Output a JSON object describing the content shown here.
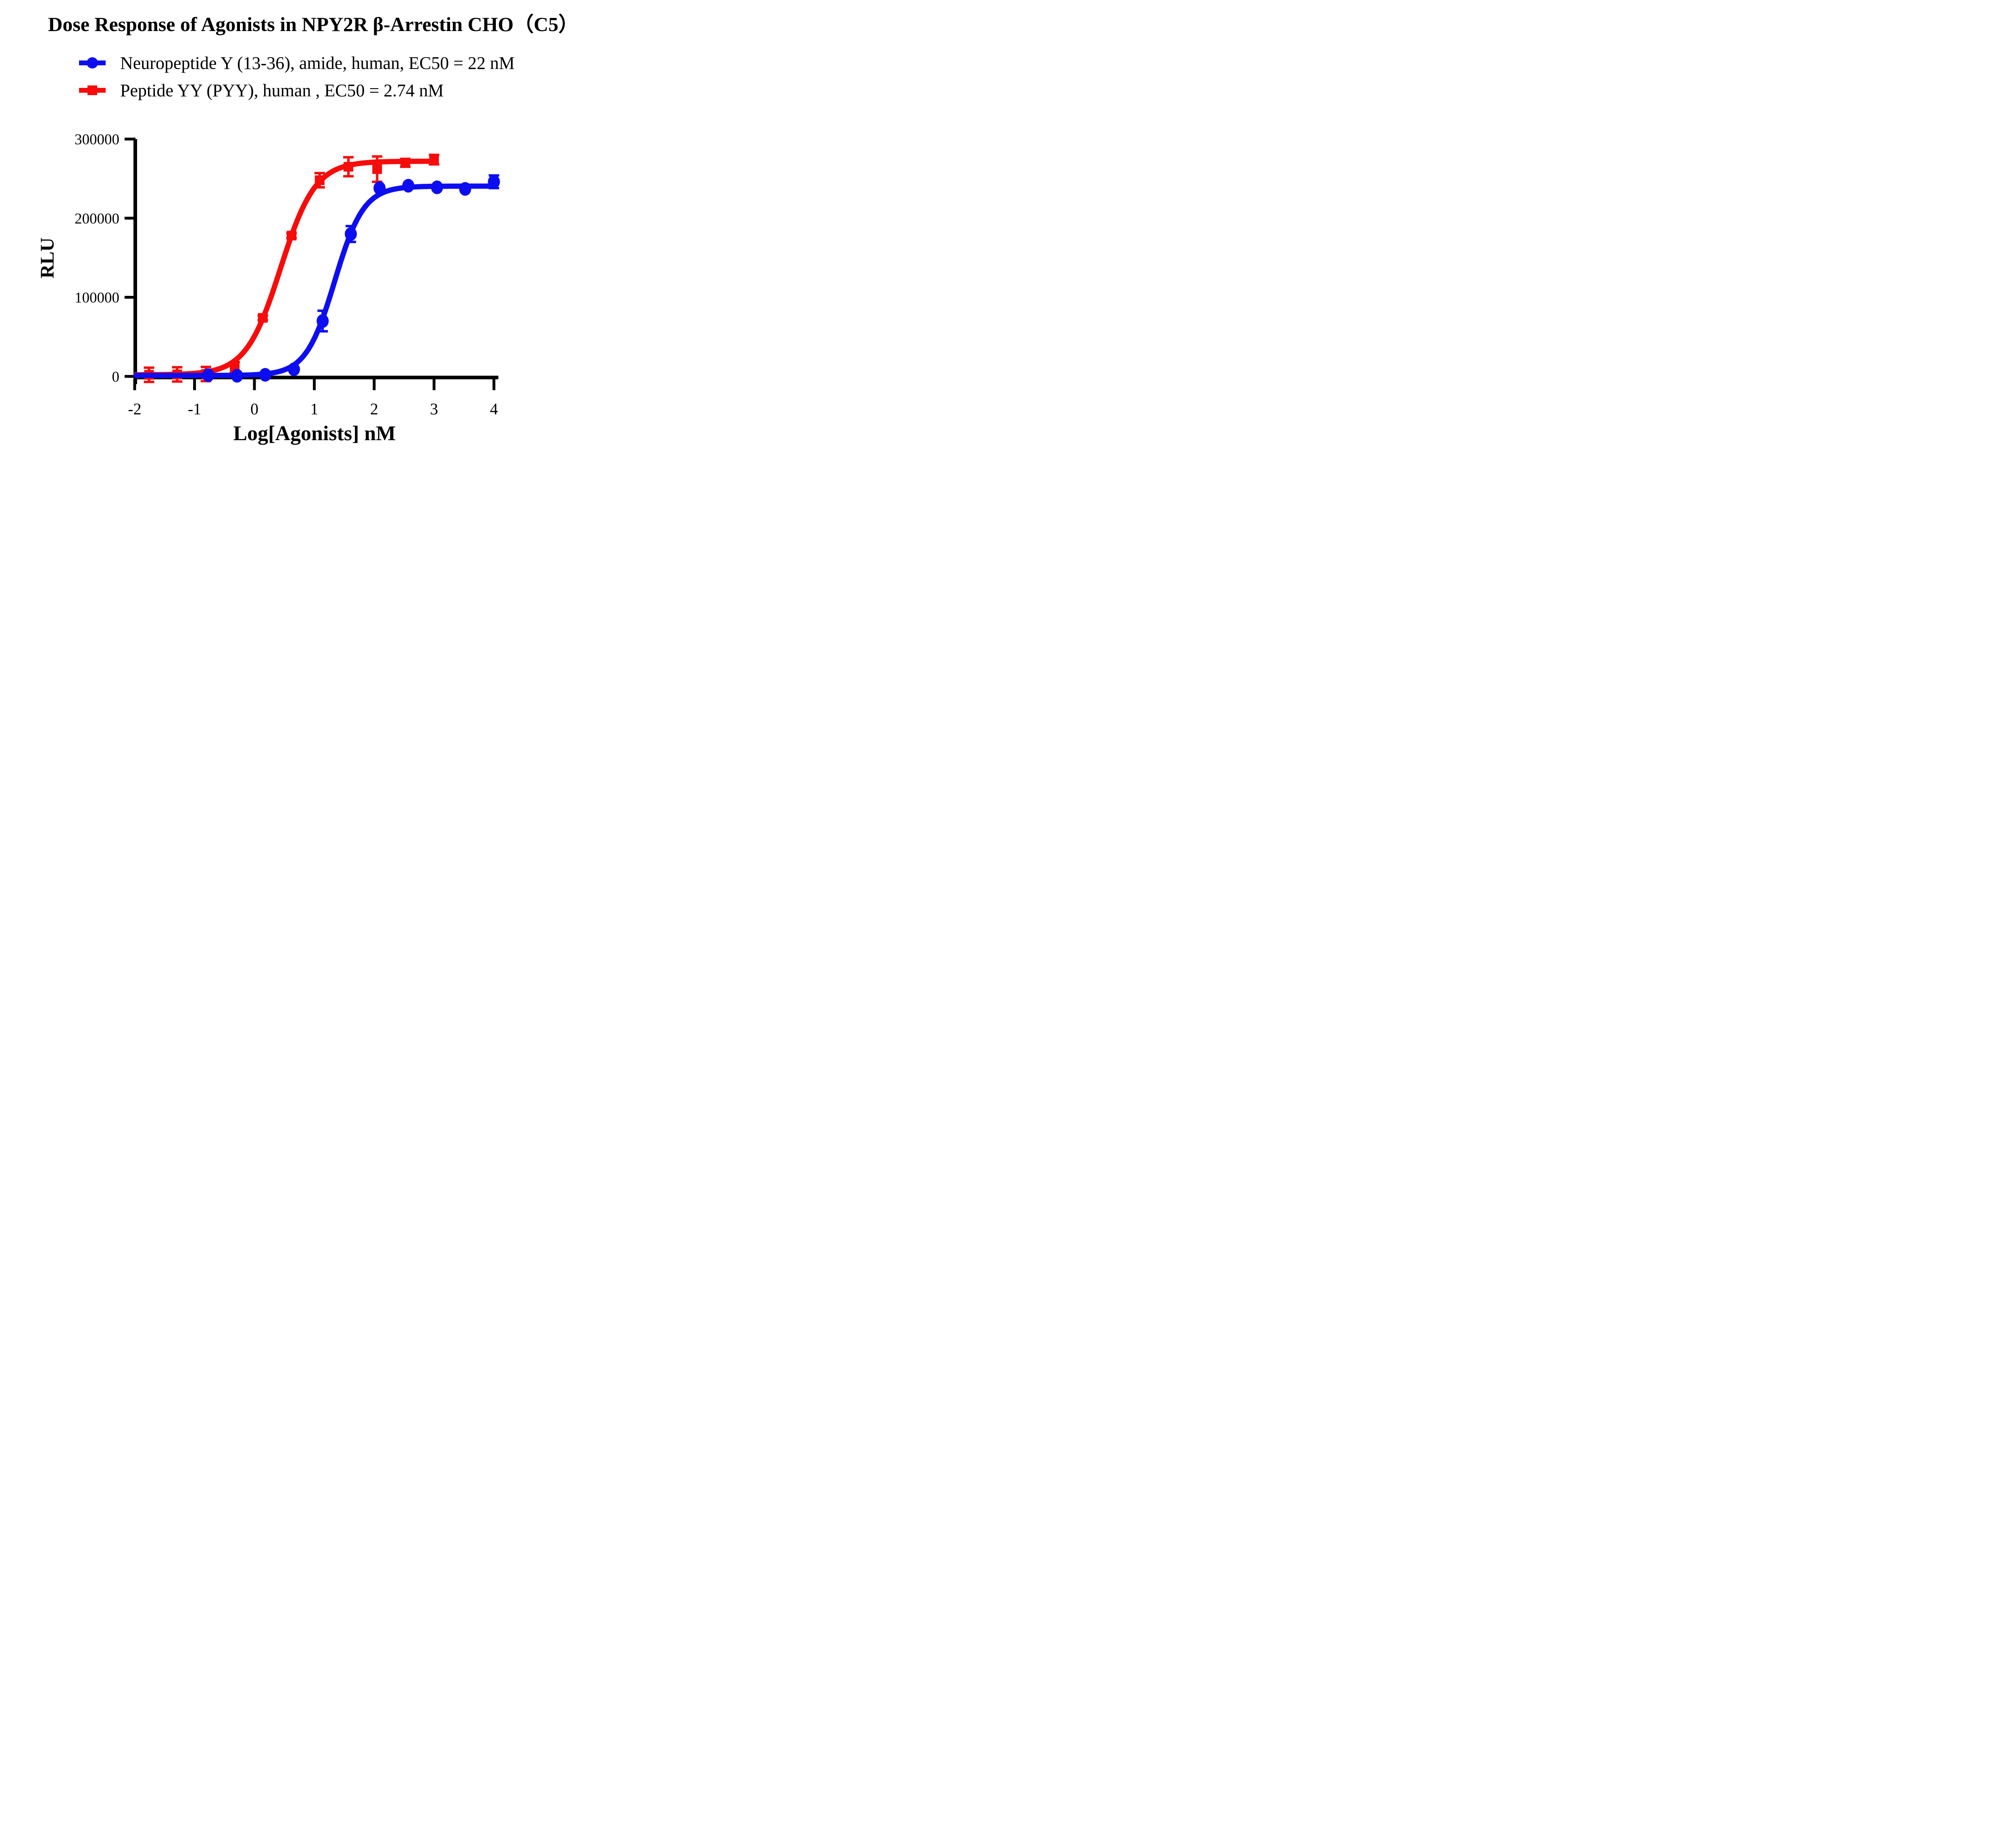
{
  "title": "Dose Response of Agonists in NPY2R β-Arrestin CHO（C5）",
  "chart_data": {
    "type": "scatter",
    "title": "Dose Response of Agonists in NPY2R β-Arrestin CHO（C5）",
    "xlabel": "Log[Agonists] nM",
    "ylabel": "RLU",
    "xlim": [
      -2.05,
      4.1
    ],
    "ylim": [
      0,
      300000
    ],
    "xticks": [
      -2,
      -1,
      0,
      1,
      2,
      3,
      4
    ],
    "yticks": [
      0,
      100000,
      200000,
      300000
    ],
    "grid": false,
    "legend_position": "top-left above plot",
    "axis_color": "#000000",
    "background_color": "#ffffff",
    "series": [
      {
        "name": "Neuropeptide Y (13-36), amide, human, EC50 = 22 nM",
        "short_name": "Neuropeptide Y (13-36), amide, human",
        "ec50_label": "EC50 = 22 nM",
        "color": "#0d0df2",
        "marker": "circle",
        "x_log_nM": [
          -0.77,
          -0.29,
          0.18,
          0.66,
          1.14,
          1.61,
          2.09,
          2.57,
          3.05,
          3.52,
          4.0
        ],
        "y_rlu": [
          1500,
          800,
          2000,
          9000,
          70000,
          180000,
          238000,
          241000,
          239000,
          237000,
          246000
        ],
        "y_err_rlu": [
          1500,
          1500,
          1500,
          2000,
          13000,
          10000,
          3000,
          3000,
          3000,
          3000,
          8000
        ],
        "fit": {
          "bottom": 1200,
          "top": 240500,
          "log_ec50": 1.3424,
          "hill": 1.8,
          "draw_range": [
            -1.98,
            3.97
          ]
        }
      },
      {
        "name": "Peptide YY (PYY), human , EC50 = 2.74 nM",
        "short_name": "Peptide YY (PYY), human",
        "ec50_label": "EC50 = 2.74 nM",
        "color": "#f80b0b",
        "marker": "square",
        "x_log_nM": [
          -1.76,
          -1.29,
          -0.81,
          -0.33,
          0.14,
          0.62,
          1.09,
          1.57,
          2.05,
          2.52,
          3.0
        ],
        "y_rlu": [
          2000,
          2500,
          3000,
          11000,
          74000,
          178000,
          248000,
          265000,
          262000,
          270000,
          274000
        ],
        "y_err_rlu": [
          9000,
          9000,
          9000,
          7000,
          3000,
          3000,
          9000,
          12000,
          16000,
          5000,
          6000
        ],
        "fit": {
          "bottom": 2000,
          "top": 272000,
          "log_ec50": 0.4378,
          "hill": 1.5,
          "draw_range": [
            -1.98,
            3.0
          ]
        }
      }
    ]
  }
}
